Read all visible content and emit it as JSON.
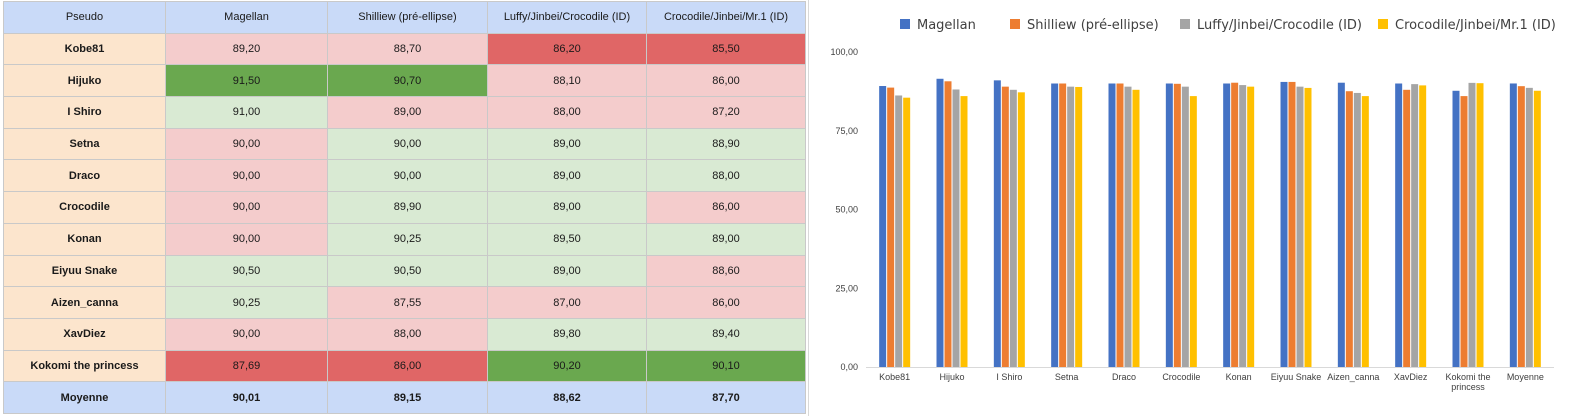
{
  "table": {
    "headers": [
      "Pseudo",
      "Magellan",
      "Shilliew (pré-ellipse)",
      "Luffy/Jinbei/Crocodile (ID)",
      "Crocodile/Jinbei/Mr.1 (ID)"
    ],
    "rows": [
      {
        "name": "Kobe81",
        "values": [
          "89,20",
          "88,70",
          "86,20",
          "85,50"
        ],
        "colors": [
          "pink",
          "pink",
          "red",
          "red"
        ]
      },
      {
        "name": "Hijuko",
        "values": [
          "91,50",
          "90,70",
          "88,10",
          "86,00"
        ],
        "colors": [
          "green",
          "green",
          "pink",
          "pink"
        ]
      },
      {
        "name": "I Shiro",
        "values": [
          "91,00",
          "89,00",
          "88,00",
          "87,20"
        ],
        "colors": [
          "lightgreen",
          "pink",
          "pink",
          "pink"
        ]
      },
      {
        "name": "Setna",
        "values": [
          "90,00",
          "90,00",
          "89,00",
          "88,90"
        ],
        "colors": [
          "pink",
          "lightgreen",
          "lightgreen",
          "lightgreen"
        ]
      },
      {
        "name": "Draco",
        "values": [
          "90,00",
          "90,00",
          "89,00",
          "88,00"
        ],
        "colors": [
          "pink",
          "lightgreen",
          "lightgreen",
          "lightgreen"
        ]
      },
      {
        "name": "Crocodile",
        "values": [
          "90,00",
          "89,90",
          "89,00",
          "86,00"
        ],
        "colors": [
          "pink",
          "lightgreen",
          "lightgreen",
          "pink"
        ]
      },
      {
        "name": "Konan",
        "values": [
          "90,00",
          "90,25",
          "89,50",
          "89,00"
        ],
        "colors": [
          "pink",
          "lightgreen",
          "lightgreen",
          "lightgreen"
        ]
      },
      {
        "name": "Eiyuu Snake",
        "values": [
          "90,50",
          "90,50",
          "89,00",
          "88,60"
        ],
        "colors": [
          "lightgreen",
          "lightgreen",
          "lightgreen",
          "pink"
        ]
      },
      {
        "name": "Aizen_canna",
        "values": [
          "90,25",
          "87,55",
          "87,00",
          "86,00"
        ],
        "colors": [
          "lightgreen",
          "pink",
          "pink",
          "pink"
        ]
      },
      {
        "name": "XavDiez",
        "values": [
          "90,00",
          "88,00",
          "89,80",
          "89,40"
        ],
        "colors": [
          "pink",
          "pink",
          "lightgreen",
          "lightgreen"
        ]
      },
      {
        "name": "Kokomi the princess",
        "values": [
          "87,69",
          "86,00",
          "90,20",
          "90,10"
        ],
        "colors": [
          "red",
          "red",
          "green",
          "green"
        ]
      }
    ],
    "average": {
      "name": "Moyenne",
      "values": [
        "90,01",
        "89,15",
        "88,62",
        "87,70"
      ]
    },
    "cell_colors": {
      "pink": "#f4cccc",
      "red": "#e06666",
      "green": "#6aa84f",
      "lightgreen": "#d9ead3"
    }
  },
  "chart_data": {
    "type": "bar",
    "categories": [
      "Kobe81",
      "Hijuko",
      "I Shiro",
      "Setna",
      "Draco",
      "Crocodile",
      "Konan",
      "Eiyuu Snake",
      "Aizen_canna",
      "XavDiez",
      "Kokomi the\nprincess",
      "Moyenne"
    ],
    "series": [
      {
        "name": "Magellan",
        "color": "#4472c4",
        "values": [
          89.2,
          91.5,
          91.0,
          90.0,
          90.0,
          90.0,
          90.0,
          90.5,
          90.25,
          90.0,
          87.69,
          90.01
        ]
      },
      {
        "name": "Shilliew (pré-ellipse)",
        "color": "#ed7d31",
        "values": [
          88.7,
          90.7,
          89.0,
          90.0,
          90.0,
          89.9,
          90.25,
          90.5,
          87.55,
          88.0,
          86.0,
          89.15
        ]
      },
      {
        "name": "Luffy/Jinbei/Crocodile (ID)",
        "color": "#a5a5a5",
        "values": [
          86.2,
          88.1,
          88.0,
          89.0,
          89.0,
          89.0,
          89.5,
          89.0,
          87.0,
          89.8,
          90.2,
          88.62
        ]
      },
      {
        "name": "Crocodile/Jinbei/Mr.1 (ID)",
        "color": "#ffc000",
        "values": [
          85.5,
          86.0,
          87.2,
          88.9,
          88.0,
          86.0,
          89.0,
          88.6,
          86.0,
          89.4,
          90.1,
          87.7
        ]
      }
    ],
    "ylim": [
      0,
      100
    ],
    "yticks": [
      "0,00",
      "25,00",
      "50,00",
      "75,00",
      "100,00"
    ],
    "ytick_values": [
      0,
      25,
      50,
      75,
      100
    ],
    "grid": false,
    "legend": "top"
  }
}
